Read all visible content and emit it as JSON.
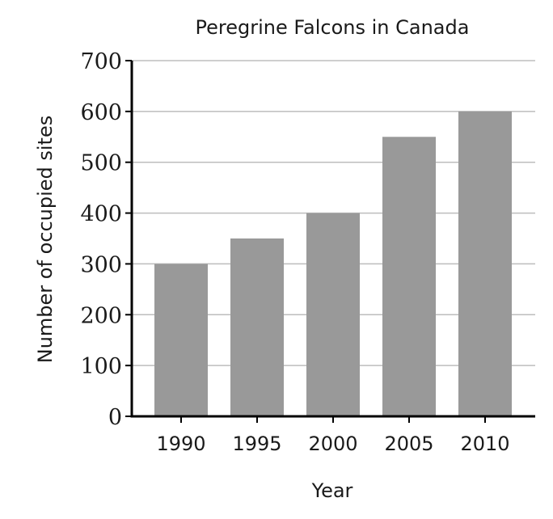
{
  "chart_data": {
    "type": "bar",
    "title": "Peregrine Falcons in Canada",
    "xlabel": "Year",
    "ylabel": "Number of occupied sites",
    "categories": [
      "1990",
      "1995",
      "2000",
      "2005",
      "2010"
    ],
    "values": [
      300,
      350,
      400,
      550,
      600
    ],
    "ylim": [
      0,
      700
    ],
    "yticks": [
      0,
      100,
      200,
      300,
      400,
      500,
      600,
      700
    ],
    "grid": true,
    "colors": {
      "bar": "#999999",
      "grid": "#bdbdbd",
      "axis": "#000000"
    }
  }
}
